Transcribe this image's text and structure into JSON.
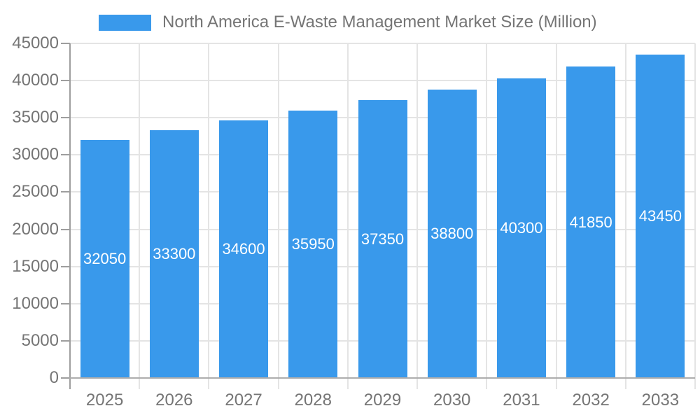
{
  "legend": {
    "label": "North America E-Waste Management Market Size (Million)"
  },
  "chart_data": {
    "type": "bar",
    "title": "North America E-Waste Management Market Size (Million)",
    "categories": [
      "2025",
      "2026",
      "2027",
      "2028",
      "2029",
      "2030",
      "2031",
      "2032",
      "2033"
    ],
    "values": [
      32050,
      33300,
      34600,
      35950,
      37350,
      38800,
      40300,
      41850,
      43450
    ],
    "bar_labels": [
      "32050",
      "33300",
      "34600",
      "35950",
      "37350",
      "38800",
      "40300",
      "41850",
      "43450"
    ],
    "xlabel": "",
    "ylabel": "",
    "ylim": [
      0,
      45000
    ],
    "yticks": [
      0,
      5000,
      10000,
      15000,
      20000,
      25000,
      30000,
      35000,
      40000,
      45000
    ],
    "grid": true,
    "legend_position": "top",
    "bar_label_position": "inside-center",
    "colors": {
      "bar": "#3999eb",
      "bar_value_text": "#ffffff",
      "axis_text": "#757575",
      "grid_line": "#e4e4e4",
      "axis_line": "#9e9e9e",
      "zero_line": "#adadad",
      "background": "#ffffff"
    }
  }
}
